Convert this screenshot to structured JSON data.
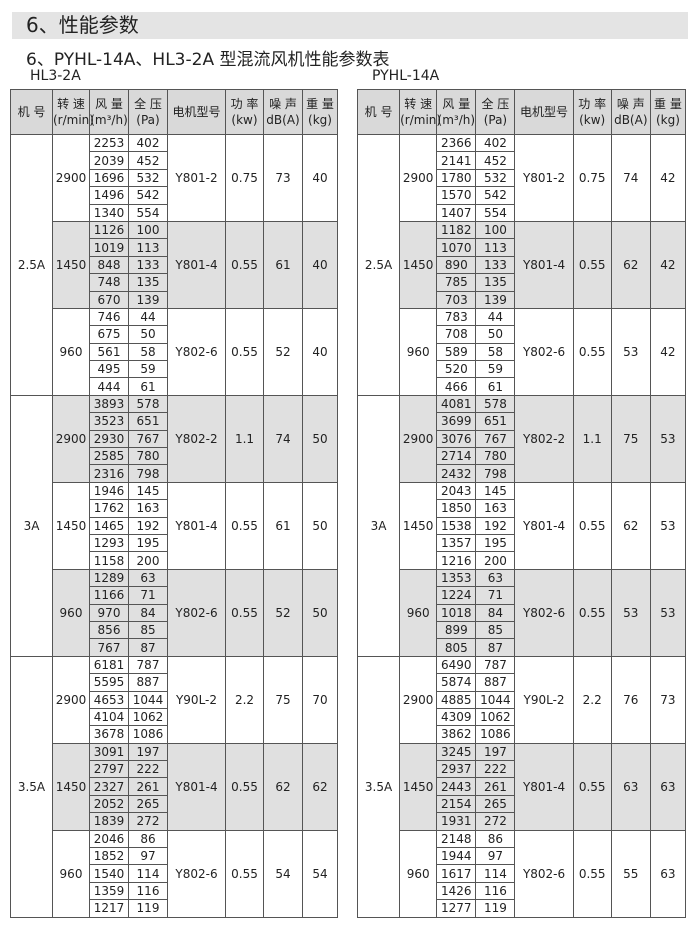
{
  "section_title": "6、性能参数",
  "subtitle": "6、PYHL-14A、HL3-2A 型混流风机性能参数表",
  "headers": [
    [
      "机 号",
      ""
    ],
    [
      "转 速",
      "(r/min)"
    ],
    [
      "风 量",
      "(m³/h)"
    ],
    [
      "全 压",
      "(Pa)"
    ],
    [
      "电机型号",
      ""
    ],
    [
      "功 率",
      "(kw)"
    ],
    [
      "噪 声",
      "dB(A)"
    ],
    [
      "重 量",
      "(kg)"
    ]
  ],
  "tables": [
    {
      "label": "HL3-2A",
      "groups": [
        {
          "model": "2.5A",
          "speeds": [
            {
              "speed": "2900",
              "motor": "Y801-2",
              "power": "0.75",
              "noise": "73",
              "weight": "40",
              "points": [
                [
                  "2253",
                  "402"
                ],
                [
                  "2039",
                  "452"
                ],
                [
                  "1696",
                  "532"
                ],
                [
                  "1496",
                  "542"
                ],
                [
                  "1340",
                  "554"
                ]
              ]
            },
            {
              "speed": "1450",
              "motor": "Y801-4",
              "power": "0.55",
              "noise": "61",
              "weight": "40",
              "points": [
                [
                  "1126",
                  "100"
                ],
                [
                  "1019",
                  "113"
                ],
                [
                  "848",
                  "133"
                ],
                [
                  "748",
                  "135"
                ],
                [
                  "670",
                  "139"
                ]
              ]
            },
            {
              "speed": "960",
              "motor": "Y802-6",
              "power": "0.55",
              "noise": "52",
              "weight": "40",
              "points": [
                [
                  "746",
                  "44"
                ],
                [
                  "675",
                  "50"
                ],
                [
                  "561",
                  "58"
                ],
                [
                  "495",
                  "59"
                ],
                [
                  "444",
                  "61"
                ]
              ]
            }
          ]
        },
        {
          "model": "3A",
          "speeds": [
            {
              "speed": "2900",
              "motor": "Y802-2",
              "power": "1.1",
              "noise": "74",
              "weight": "50",
              "points": [
                [
                  "3893",
                  "578"
                ],
                [
                  "3523",
                  "651"
                ],
                [
                  "2930",
                  "767"
                ],
                [
                  "2585",
                  "780"
                ],
                [
                  "2316",
                  "798"
                ]
              ]
            },
            {
              "speed": "1450",
              "motor": "Y801-4",
              "power": "0.55",
              "noise": "61",
              "weight": "50",
              "points": [
                [
                  "1946",
                  "145"
                ],
                [
                  "1762",
                  "163"
                ],
                [
                  "1465",
                  "192"
                ],
                [
                  "1293",
                  "195"
                ],
                [
                  "1158",
                  "200"
                ]
              ]
            },
            {
              "speed": "960",
              "motor": "Y802-6",
              "power": "0.55",
              "noise": "52",
              "weight": "50",
              "points": [
                [
                  "1289",
                  "63"
                ],
                [
                  "1166",
                  "71"
                ],
                [
                  "970",
                  "84"
                ],
                [
                  "856",
                  "85"
                ],
                [
                  "767",
                  "87"
                ]
              ]
            }
          ]
        },
        {
          "model": "3.5A",
          "speeds": [
            {
              "speed": "2900",
              "motor": "Y90L-2",
              "power": "2.2",
              "noise": "75",
              "weight": "70",
              "points": [
                [
                  "6181",
                  "787"
                ],
                [
                  "5595",
                  "887"
                ],
                [
                  "4653",
                  "1044"
                ],
                [
                  "4104",
                  "1062"
                ],
                [
                  "3678",
                  "1086"
                ]
              ]
            },
            {
              "speed": "1450",
              "motor": "Y801-4",
              "power": "0.55",
              "noise": "62",
              "weight": "62",
              "points": [
                [
                  "3091",
                  "197"
                ],
                [
                  "2797",
                  "222"
                ],
                [
                  "2327",
                  "261"
                ],
                [
                  "2052",
                  "265"
                ],
                [
                  "1839",
                  "272"
                ]
              ]
            },
            {
              "speed": "960",
              "motor": "Y802-6",
              "power": "0.55",
              "noise": "54",
              "weight": "54",
              "points": [
                [
                  "2046",
                  "86"
                ],
                [
                  "1852",
                  "97"
                ],
                [
                  "1540",
                  "114"
                ],
                [
                  "1359",
                  "116"
                ],
                [
                  "1217",
                  "119"
                ]
              ]
            }
          ]
        }
      ]
    },
    {
      "label": "PYHL-14A",
      "groups": [
        {
          "model": "2.5A",
          "speeds": [
            {
              "speed": "2900",
              "motor": "Y801-2",
              "power": "0.75",
              "noise": "74",
              "weight": "42",
              "points": [
                [
                  "2366",
                  "402"
                ],
                [
                  "2141",
                  "452"
                ],
                [
                  "1780",
                  "532"
                ],
                [
                  "1570",
                  "542"
                ],
                [
                  "1407",
                  "554"
                ]
              ]
            },
            {
              "speed": "1450",
              "motor": "Y801-4",
              "power": "0.55",
              "noise": "62",
              "weight": "42",
              "points": [
                [
                  "1182",
                  "100"
                ],
                [
                  "1070",
                  "113"
                ],
                [
                  "890",
                  "133"
                ],
                [
                  "785",
                  "135"
                ],
                [
                  "703",
                  "139"
                ]
              ]
            },
            {
              "speed": "960",
              "motor": "Y802-6",
              "power": "0.55",
              "noise": "53",
              "weight": "42",
              "points": [
                [
                  "783",
                  "44"
                ],
                [
                  "708",
                  "50"
                ],
                [
                  "589",
                  "58"
                ],
                [
                  "520",
                  "59"
                ],
                [
                  "466",
                  "61"
                ]
              ]
            }
          ]
        },
        {
          "model": "3A",
          "speeds": [
            {
              "speed": "2900",
              "motor": "Y802-2",
              "power": "1.1",
              "noise": "75",
              "weight": "53",
              "points": [
                [
                  "4081",
                  "578"
                ],
                [
                  "3699",
                  "651"
                ],
                [
                  "3076",
                  "767"
                ],
                [
                  "2714",
                  "780"
                ],
                [
                  "2432",
                  "798"
                ]
              ]
            },
            {
              "speed": "1450",
              "motor": "Y801-4",
              "power": "0.55",
              "noise": "62",
              "weight": "53",
              "points": [
                [
                  "2043",
                  "145"
                ],
                [
                  "1850",
                  "163"
                ],
                [
                  "1538",
                  "192"
                ],
                [
                  "1357",
                  "195"
                ],
                [
                  "1216",
                  "200"
                ]
              ]
            },
            {
              "speed": "960",
              "motor": "Y802-6",
              "power": "0.55",
              "noise": "53",
              "weight": "53",
              "points": [
                [
                  "1353",
                  "63"
                ],
                [
                  "1224",
                  "71"
                ],
                [
                  "1018",
                  "84"
                ],
                [
                  "899",
                  "85"
                ],
                [
                  "805",
                  "87"
                ]
              ]
            }
          ]
        },
        {
          "model": "3.5A",
          "speeds": [
            {
              "speed": "2900",
              "motor": "Y90L-2",
              "power": "2.2",
              "noise": "76",
              "weight": "73",
              "points": [
                [
                  "6490",
                  "787"
                ],
                [
                  "5874",
                  "887"
                ],
                [
                  "4885",
                  "1044"
                ],
                [
                  "4309",
                  "1062"
                ],
                [
                  "3862",
                  "1086"
                ]
              ]
            },
            {
              "speed": "1450",
              "motor": "Y801-4",
              "power": "0.55",
              "noise": "63",
              "weight": "63",
              "points": [
                [
                  "3245",
                  "197"
                ],
                [
                  "2937",
                  "222"
                ],
                [
                  "2443",
                  "261"
                ],
                [
                  "2154",
                  "265"
                ],
                [
                  "1931",
                  "272"
                ]
              ]
            },
            {
              "speed": "960",
              "motor": "Y802-6",
              "power": "0.55",
              "noise": "55",
              "weight": "63",
              "points": [
                [
                  "2148",
                  "86"
                ],
                [
                  "1944",
                  "97"
                ],
                [
                  "1617",
                  "114"
                ],
                [
                  "1426",
                  "116"
                ],
                [
                  "1277",
                  "119"
                ]
              ]
            }
          ]
        }
      ]
    }
  ]
}
